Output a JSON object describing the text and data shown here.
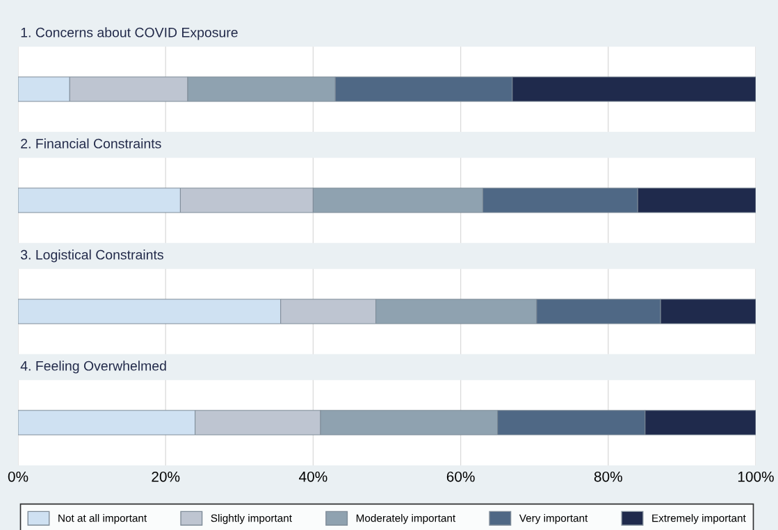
{
  "chart_data": {
    "type": "bar",
    "orientation": "horizontal",
    "stacked": true,
    "categories": [
      "1. Concerns about COVID Exposure",
      "2. Financial Constraints",
      "3. Logistical Constraints",
      "4. Feeling Overwhelmed"
    ],
    "xlim": [
      0,
      100
    ],
    "xticks": [
      {
        "value": 0,
        "label": "0%"
      },
      {
        "value": 20,
        "label": "20%"
      },
      {
        "value": 40,
        "label": "40%"
      },
      {
        "value": 60,
        "label": "60%"
      },
      {
        "value": 80,
        "label": "80%"
      },
      {
        "value": 100,
        "label": "100%"
      }
    ],
    "grid": "x",
    "legend": "bottom",
    "series": [
      {
        "name": "Not at all important",
        "color": "#cfe1f2",
        "values": [
          7,
          22,
          35.6,
          24
        ]
      },
      {
        "name": "Slightly important",
        "color": "#bec5d1",
        "values": [
          16,
          18,
          12.9,
          17
        ]
      },
      {
        "name": "Moderately important",
        "color": "#8fa2b0",
        "values": [
          20,
          23,
          21.8,
          24
        ]
      },
      {
        "name": "Very important",
        "color": "#4f6885",
        "values": [
          24,
          21,
          16.8,
          20
        ]
      },
      {
        "name": "Extremely important",
        "color": "#1f2a4c",
        "values": [
          33,
          16,
          12.9,
          15
        ]
      }
    ]
  }
}
